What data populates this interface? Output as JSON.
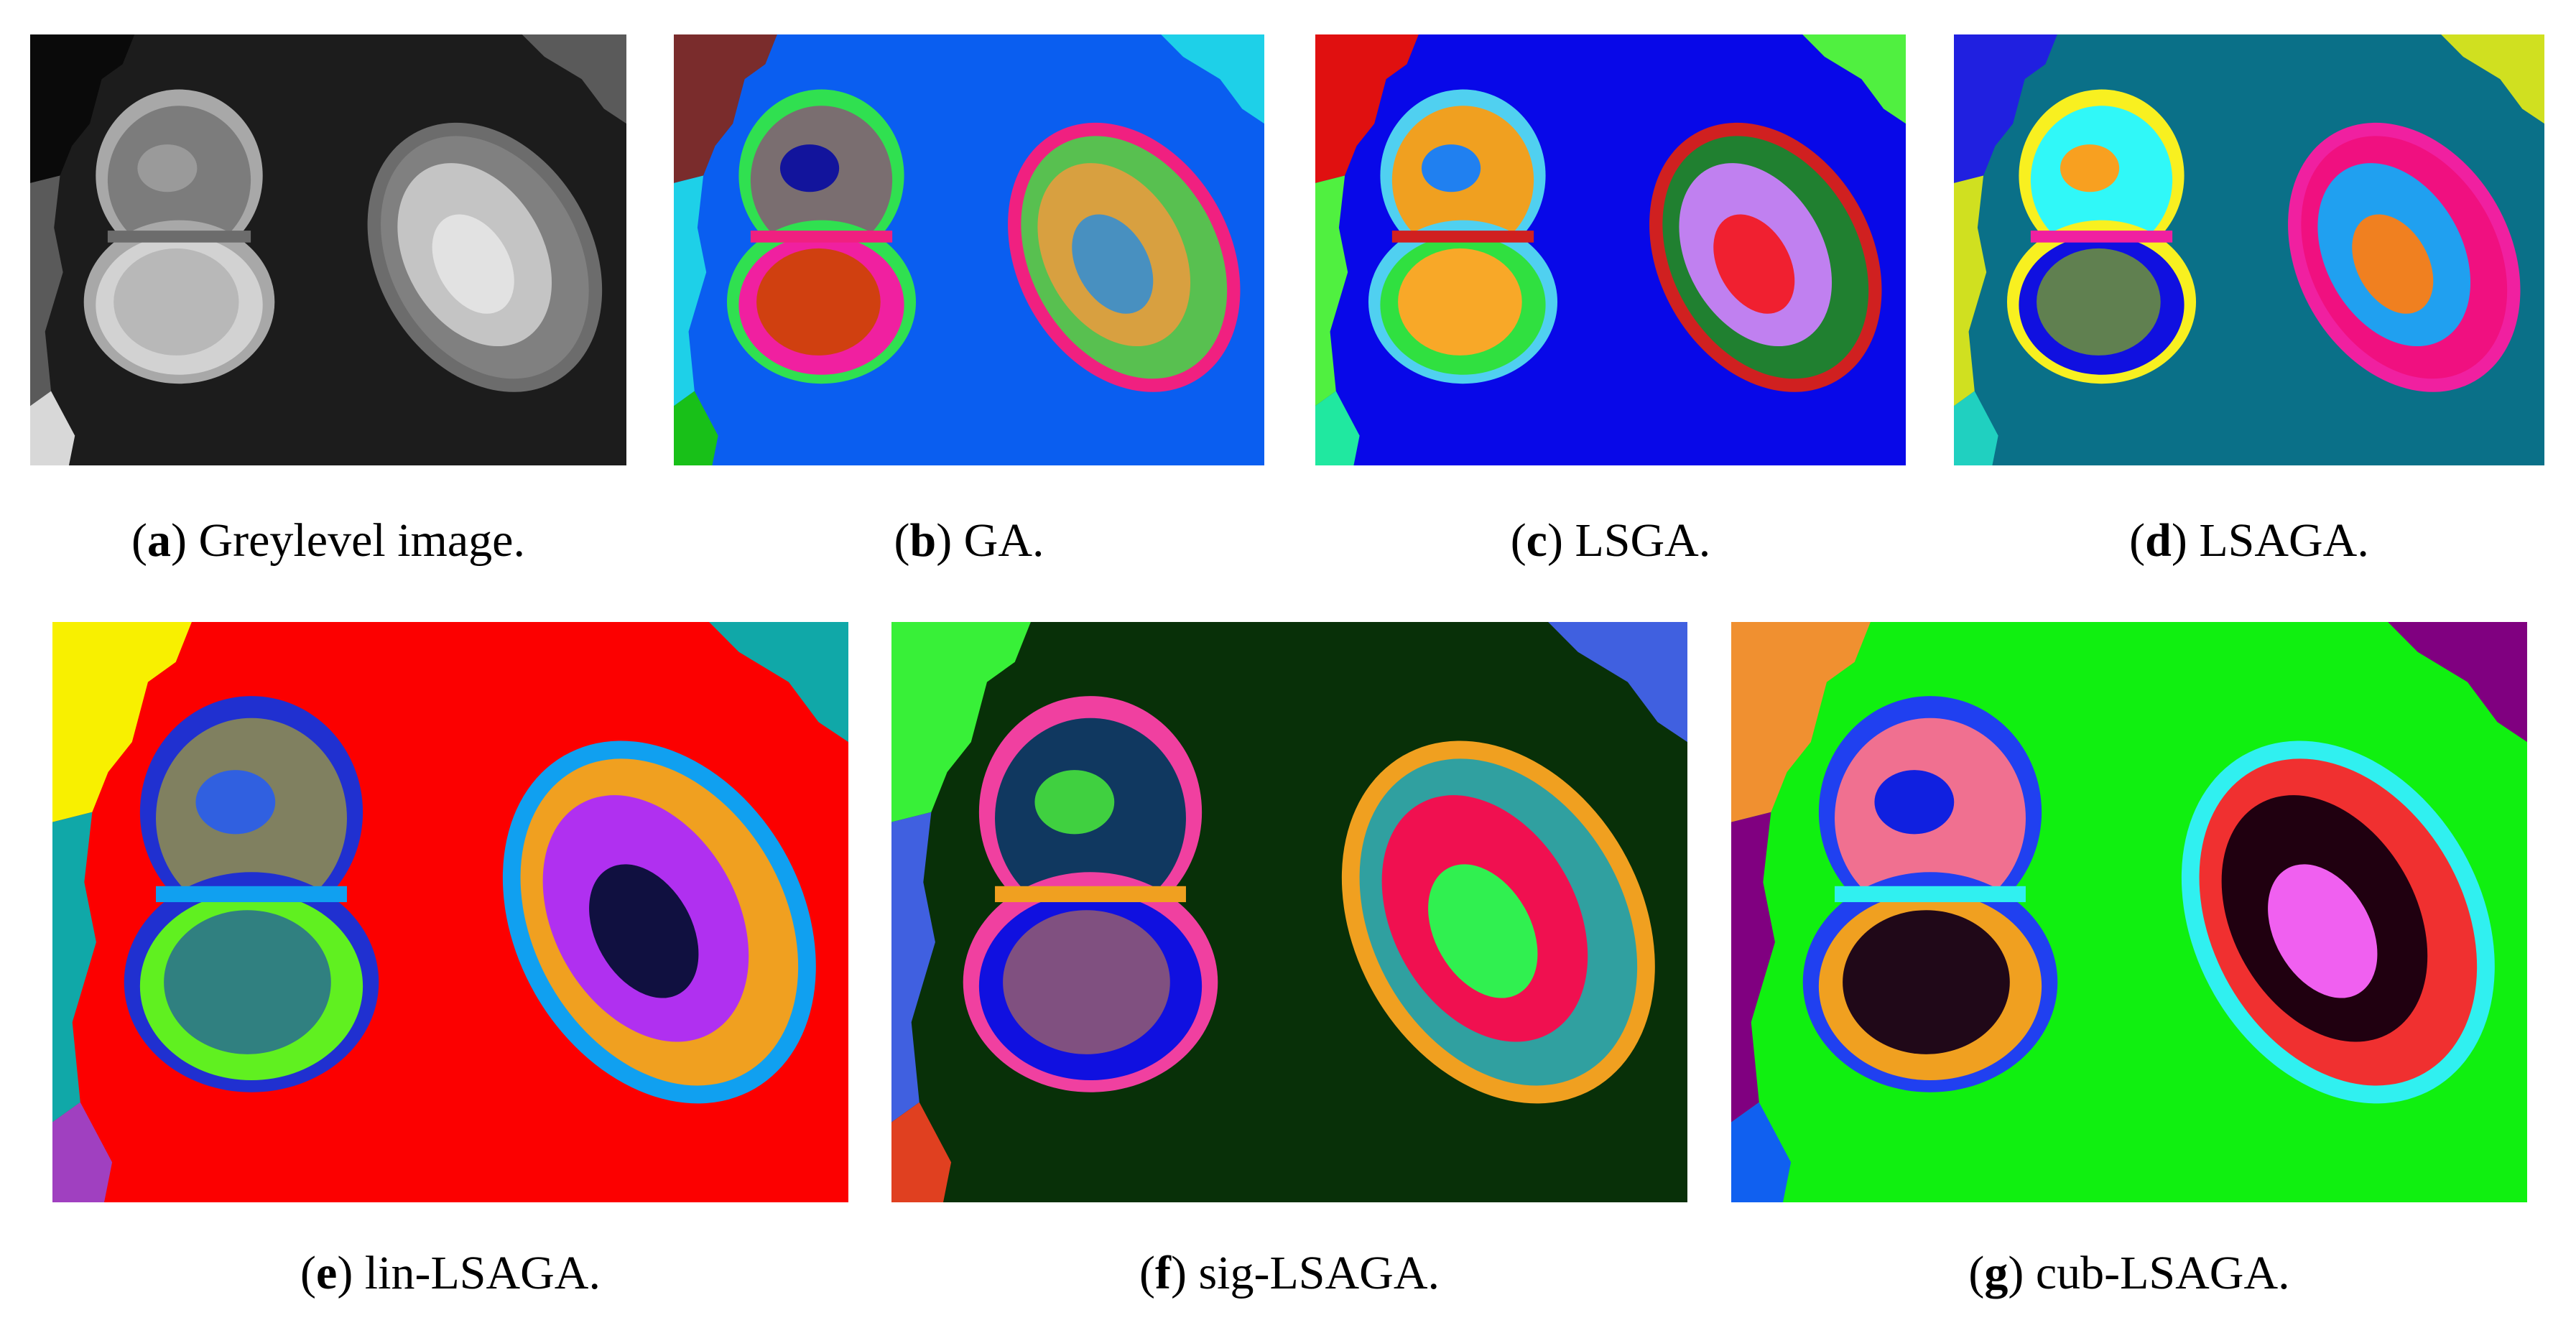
{
  "figure": {
    "panels": [
      {
        "letter": "a",
        "label": "Greylevel image.",
        "palette": {
          "bg": "#1c1c1c",
          "c1": "#0a0a0a",
          "c2": "#5a5a5a",
          "c3": "#d8d8d8",
          "cellA": "#7c7c7c",
          "cellA2": "#9a9a9a",
          "cellB": "#b8b8b8",
          "cellB2": "#d2d2d2",
          "rim": "#a8a8a8",
          "core": "#6c6c6c",
          "cellC": "#808080",
          "cellC2": "#c4c4c4",
          "cellC3": "#e2e2e2"
        }
      },
      {
        "letter": "b",
        "label": "GA.",
        "palette": {
          "bg": "#0a5ef0",
          "c1": "#7a2c2c",
          "c2": "#1ed0e8",
          "c3": "#18c018",
          "cellA": "#7a6e70",
          "cellA2": "#12149c",
          "cellB": "#d04010",
          "cellB2": "#f020a0",
          "rim": "#30e050",
          "core": "#f02080",
          "cellC": "#58c050",
          "cellC2": "#d8a040",
          "cellC3": "#4890c0"
        }
      },
      {
        "letter": "c",
        "label": "LSGA.",
        "palette": {
          "bg": "#0808e8",
          "c1": "#e01010",
          "c2": "#50f040",
          "c3": "#20e8a0",
          "cellA": "#f0a020",
          "cellA2": "#2080f0",
          "cellB": "#f8a828",
          "cellB2": "#30e040",
          "rim": "#50d0f0",
          "core": "#d02020",
          "cellC": "#208030",
          "cellC2": "#c080f0",
          "cellC3": "#f02030"
        }
      },
      {
        "letter": "d",
        "label": "LSAGA.",
        "palette": {
          "bg": "#0a7088",
          "c1": "#2020e0",
          "c2": "#d0e020",
          "c3": "#20d0c0",
          "cellA": "#30f8f8",
          "cellA2": "#f8a020",
          "cellB": "#608050",
          "cellB2": "#1010e0",
          "rim": "#f8f020",
          "core": "#f020a0",
          "cellC": "#f01080",
          "cellC2": "#20a0f0",
          "cellC3": "#f08020"
        }
      },
      {
        "letter": "e",
        "label": "lin-LSAGA.",
        "palette": {
          "bg": "#fc0000",
          "c1": "#f8f000",
          "c2": "#10a8a8",
          "c3": "#a040c0",
          "cellA": "#808060",
          "cellA2": "#3060e0",
          "cellB": "#308080",
          "cellB2": "#60f020",
          "rim": "#2030d0",
          "core": "#10a0f0",
          "cellC": "#f0a020",
          "cellC2": "#b030f0",
          "cellC3": "#101040"
        }
      },
      {
        "letter": "f",
        "label": "sig-LSAGA.",
        "palette": {
          "bg": "#083008",
          "c1": "#38f038",
          "c2": "#4060e0",
          "c3": "#e04020",
          "cellA": "#103860",
          "cellA2": "#40d040",
          "cellB": "#805080",
          "cellB2": "#1010e0",
          "rim": "#f040a0",
          "core": "#f0a020",
          "cellC": "#30a0a0",
          "cellC2": "#f01050",
          "cellC3": "#30f050"
        }
      },
      {
        "letter": "g",
        "label": "cub-LSAGA.",
        "palette": {
          "bg": "#10f010",
          "c1": "#f09030",
          "c2": "#800080",
          "c3": "#1060f0",
          "cellA": "#f07090",
          "cellA2": "#1020e0",
          "cellB": "#200818",
          "cellB2": "#f0a020",
          "rim": "#2040f0",
          "core": "#30f0f0",
          "cellC": "#f03030",
          "cellC2": "#200010",
          "cellC3": "#f060f0"
        }
      }
    ]
  }
}
